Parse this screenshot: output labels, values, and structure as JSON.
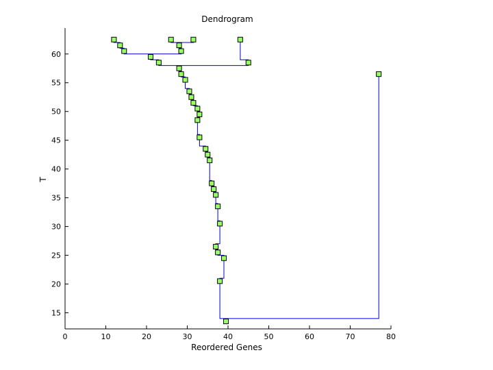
{
  "chart_data": {
    "type": "scatter",
    "title": "Dendrogram",
    "xlabel": "Reordered Genes",
    "ylabel": "T",
    "xlim": [
      0,
      80
    ],
    "ylim": [
      12.2,
      64.5
    ],
    "xticks": [
      0,
      10,
      20,
      30,
      40,
      50,
      60,
      70,
      80
    ],
    "yticks": [
      15,
      20,
      25,
      30,
      35,
      40,
      45,
      50,
      55,
      60
    ],
    "grid": false,
    "line_color": "#0000cc",
    "marker_fill": "#99ff66",
    "marker_edge": "#000000",
    "points": [
      {
        "x": 12.0,
        "y": 62.5
      },
      {
        "x": 26.0,
        "y": 62.5
      },
      {
        "x": 31.5,
        "y": 62.5
      },
      {
        "x": 43.0,
        "y": 62.5
      },
      {
        "x": 13.5,
        "y": 61.5
      },
      {
        "x": 28.0,
        "y": 61.5
      },
      {
        "x": 14.5,
        "y": 60.5
      },
      {
        "x": 28.5,
        "y": 60.5
      },
      {
        "x": 21.0,
        "y": 59.5
      },
      {
        "x": 23.0,
        "y": 58.5
      },
      {
        "x": 45.0,
        "y": 58.5
      },
      {
        "x": 28.0,
        "y": 57.5
      },
      {
        "x": 77.0,
        "y": 56.5
      },
      {
        "x": 28.5,
        "y": 56.5
      },
      {
        "x": 29.5,
        "y": 55.5
      },
      {
        "x": 30.5,
        "y": 53.5
      },
      {
        "x": 31.0,
        "y": 52.5
      },
      {
        "x": 31.5,
        "y": 51.5
      },
      {
        "x": 32.5,
        "y": 50.5
      },
      {
        "x": 33.0,
        "y": 49.5
      },
      {
        "x": 32.5,
        "y": 48.5
      },
      {
        "x": 33.0,
        "y": 45.5
      },
      {
        "x": 34.5,
        "y": 43.5
      },
      {
        "x": 35.0,
        "y": 42.5
      },
      {
        "x": 35.5,
        "y": 41.5
      },
      {
        "x": 36.0,
        "y": 37.5
      },
      {
        "x": 36.5,
        "y": 36.5
      },
      {
        "x": 37.0,
        "y": 35.5
      },
      {
        "x": 37.5,
        "y": 33.5
      },
      {
        "x": 38.0,
        "y": 30.5
      },
      {
        "x": 37.0,
        "y": 26.5
      },
      {
        "x": 37.5,
        "y": 25.5
      },
      {
        "x": 39.0,
        "y": 24.5
      },
      {
        "x": 38.0,
        "y": 20.5
      },
      {
        "x": 39.5,
        "y": 13.5
      }
    ],
    "links": [
      [
        [
          12.0,
          62.5
        ],
        [
          12.0,
          62.0
        ],
        [
          13.5,
          62.0
        ],
        [
          13.5,
          61.5
        ]
      ],
      [
        [
          13.5,
          61.5
        ],
        [
          13.5,
          61.0
        ],
        [
          14.5,
          61.0
        ],
        [
          14.5,
          60.5
        ]
      ],
      [
        [
          26.0,
          62.5
        ],
        [
          26.0,
          62.0
        ],
        [
          31.5,
          62.0
        ],
        [
          31.5,
          62.5
        ]
      ],
      [
        [
          28.0,
          62.0
        ],
        [
          28.0,
          61.5
        ]
      ],
      [
        [
          28.0,
          61.5
        ],
        [
          28.0,
          61.0
        ],
        [
          28.5,
          61.0
        ],
        [
          28.5,
          60.5
        ]
      ],
      [
        [
          14.5,
          60.5
        ],
        [
          14.5,
          60.0
        ],
        [
          28.5,
          60.0
        ],
        [
          28.5,
          60.5
        ]
      ],
      [
        [
          21.0,
          60.0
        ],
        [
          21.0,
          59.5
        ]
      ],
      [
        [
          21.0,
          59.5
        ],
        [
          21.0,
          59.0
        ],
        [
          23.0,
          59.0
        ],
        [
          23.0,
          58.5
        ]
      ],
      [
        [
          43.0,
          62.5
        ],
        [
          43.0,
          59.0
        ],
        [
          45.0,
          59.0
        ],
        [
          45.0,
          58.5
        ]
      ],
      [
        [
          23.0,
          58.5
        ],
        [
          23.0,
          58.0
        ],
        [
          45.0,
          58.0
        ],
        [
          45.0,
          58.5
        ]
      ],
      [
        [
          28.0,
          58.0
        ],
        [
          28.0,
          57.5
        ]
      ],
      [
        [
          28.0,
          57.5
        ],
        [
          28.0,
          57.0
        ],
        [
          28.5,
          57.0
        ],
        [
          28.5,
          56.5
        ]
      ],
      [
        [
          28.5,
          56.5
        ],
        [
          28.5,
          56.0
        ],
        [
          29.5,
          56.0
        ],
        [
          29.5,
          55.5
        ]
      ],
      [
        [
          29.5,
          55.5
        ],
        [
          29.5,
          54.0
        ],
        [
          30.5,
          54.0
        ],
        [
          30.5,
          53.5
        ]
      ],
      [
        [
          30.5,
          53.5
        ],
        [
          30.5,
          53.0
        ],
        [
          31.0,
          53.0
        ],
        [
          31.0,
          52.5
        ]
      ],
      [
        [
          31.0,
          52.5
        ],
        [
          31.0,
          52.0
        ],
        [
          31.5,
          52.0
        ],
        [
          31.5,
          51.5
        ]
      ],
      [
        [
          31.5,
          51.5
        ],
        [
          31.5,
          51.0
        ],
        [
          32.5,
          51.0
        ],
        [
          32.5,
          50.5
        ]
      ],
      [
        [
          32.5,
          50.5
        ],
        [
          32.5,
          50.0
        ],
        [
          33.0,
          50.0
        ],
        [
          33.0,
          49.5
        ]
      ],
      [
        [
          33.0,
          49.5
        ],
        [
          33.0,
          49.0
        ],
        [
          32.5,
          49.0
        ],
        [
          32.5,
          48.5
        ]
      ],
      [
        [
          32.5,
          48.5
        ],
        [
          32.5,
          46.0
        ],
        [
          33.0,
          46.0
        ],
        [
          33.0,
          45.5
        ]
      ],
      [
        [
          33.0,
          45.5
        ],
        [
          33.0,
          44.0
        ],
        [
          34.5,
          44.0
        ],
        [
          34.5,
          43.5
        ]
      ],
      [
        [
          34.5,
          43.5
        ],
        [
          34.5,
          43.0
        ],
        [
          35.0,
          43.0
        ],
        [
          35.0,
          42.5
        ]
      ],
      [
        [
          35.0,
          42.5
        ],
        [
          35.0,
          42.0
        ],
        [
          35.5,
          42.0
        ],
        [
          35.5,
          41.5
        ]
      ],
      [
        [
          35.5,
          41.5
        ],
        [
          35.5,
          38.0
        ],
        [
          36.0,
          38.0
        ],
        [
          36.0,
          37.5
        ]
      ],
      [
        [
          36.0,
          37.5
        ],
        [
          36.0,
          37.0
        ],
        [
          36.5,
          37.0
        ],
        [
          36.5,
          36.5
        ]
      ],
      [
        [
          36.5,
          36.5
        ],
        [
          36.5,
          36.0
        ],
        [
          37.0,
          36.0
        ],
        [
          37.0,
          35.5
        ]
      ],
      [
        [
          37.0,
          35.5
        ],
        [
          37.0,
          34.0
        ],
        [
          37.5,
          34.0
        ],
        [
          37.5,
          33.5
        ]
      ],
      [
        [
          37.5,
          33.5
        ],
        [
          37.5,
          31.0
        ],
        [
          38.0,
          31.0
        ],
        [
          38.0,
          30.5
        ]
      ],
      [
        [
          38.0,
          30.5
        ],
        [
          38.0,
          27.0
        ],
        [
          37.0,
          27.0
        ],
        [
          37.0,
          26.5
        ]
      ],
      [
        [
          37.0,
          26.5
        ],
        [
          37.0,
          26.0
        ],
        [
          37.5,
          26.0
        ],
        [
          37.5,
          25.5
        ]
      ],
      [
        [
          37.5,
          25.5
        ],
        [
          37.5,
          25.0
        ],
        [
          39.0,
          25.0
        ],
        [
          39.0,
          24.5
        ]
      ],
      [
        [
          39.0,
          24.5
        ],
        [
          39.0,
          21.0
        ],
        [
          38.0,
          21.0
        ],
        [
          38.0,
          20.5
        ]
      ],
      [
        [
          38.0,
          20.5
        ],
        [
          38.0,
          14.0
        ],
        [
          77.0,
          14.0
        ],
        [
          77.0,
          56.5
        ]
      ],
      [
        [
          39.5,
          14.0
        ],
        [
          39.5,
          13.5
        ]
      ]
    ]
  }
}
